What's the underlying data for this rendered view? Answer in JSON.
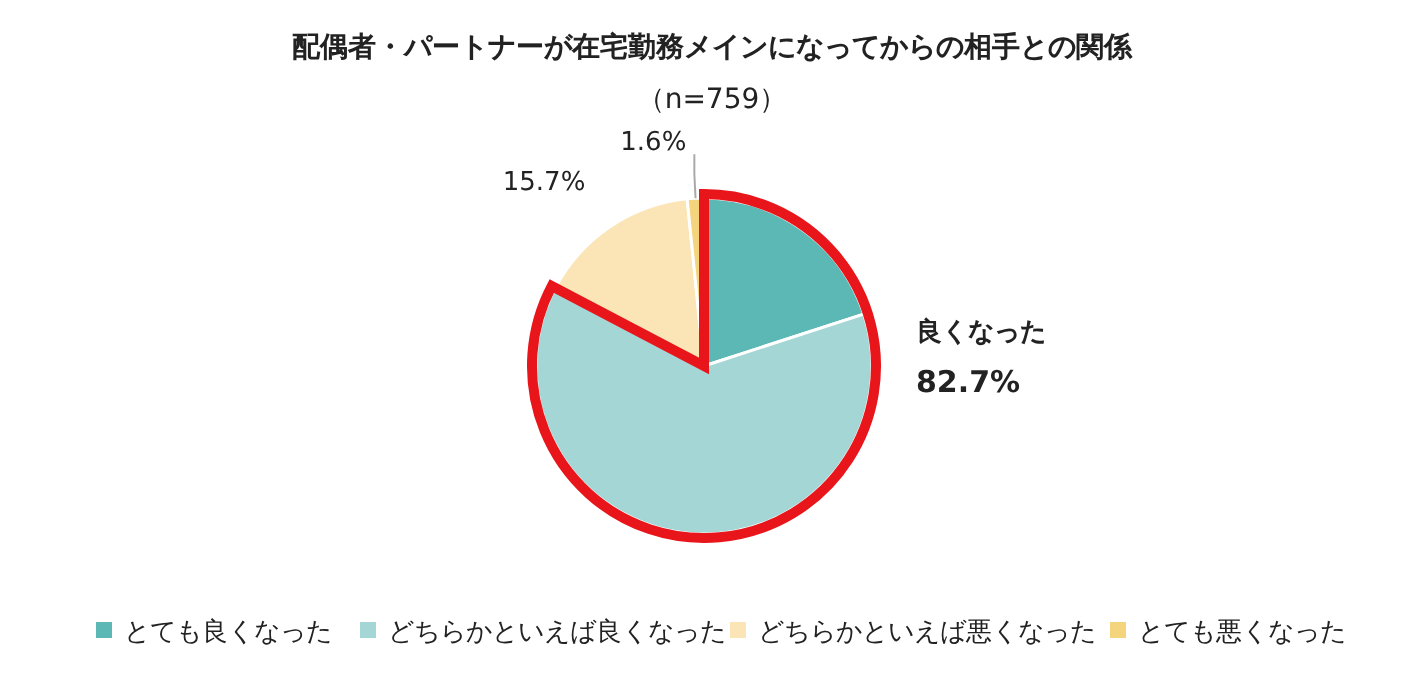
{
  "chart_data": {
    "type": "pie",
    "title": "配偶者・パートナーが在宅勤務メインになってからの相手との関係",
    "subtitle": "（n=759）",
    "categories": [
      "とても良くなった",
      "どちらかといえば良くなった",
      "どちらかといえば悪くなった",
      "とても悪くなった"
    ],
    "values": [
      20,
      62.7,
      15.7,
      1.6
    ],
    "colors": [
      "#5bb8b4",
      "#a3d6d4",
      "#fbe5b6",
      "#f5d47e"
    ],
    "value_labels": [
      null,
      null,
      "15.7%",
      "1.6%"
    ],
    "annotations": [
      "良くなった",
      "82.7%"
    ],
    "legend": "bottom"
  }
}
